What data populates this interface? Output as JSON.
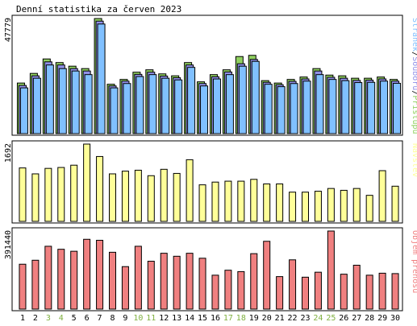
{
  "chart_data": {
    "type": "bar",
    "title": "Denní statistika za červen 2023",
    "days": [
      "1",
      "2",
      "3",
      "4",
      "5",
      "6",
      "7",
      "8",
      "9",
      "10",
      "11",
      "12",
      "13",
      "14",
      "15",
      "16",
      "17",
      "18",
      "19",
      "20",
      "21",
      "22",
      "23",
      "24",
      "25",
      "26",
      "27",
      "28",
      "29",
      "30"
    ],
    "weekend_days": [
      "3",
      "4",
      "10",
      "11",
      "17",
      "18",
      "24",
      "25"
    ],
    "colors": {
      "frame": "#000000",
      "hits": "#90d060",
      "files": "#9090e8",
      "pages": "#80c0ff",
      "visits": "#ffff99",
      "volume": "#f08080",
      "weekday_label": "#000000",
      "weekend_label": "#80b040"
    },
    "panels": [
      {
        "id": "hits-panel",
        "max_label": "47779",
        "ymax": 47779,
        "legend": [
          {
            "text": "Stránek",
            "color": "#80c0ff"
          },
          {
            "text": "/",
            "color": "#000000"
          },
          {
            "text": "Souborů",
            "color": "#9090e8"
          },
          {
            "text": "/",
            "color": "#000000"
          },
          {
            "text": "Přístupů",
            "color": "#90d060"
          }
        ],
        "series": [
          {
            "name": "Přístupů",
            "values": [
              21000,
              25000,
              31000,
              29500,
              28000,
              27000,
              47779,
              20500,
              22500,
              25500,
              26500,
              24800,
              24000,
              29500,
              21500,
              24500,
              26500,
              32000,
              32500,
              22000,
              21000,
              22500,
              23500,
              27000,
              24300,
              24000,
              23000,
              23000,
              23500,
              22500
            ]
          },
          {
            "name": "Souborů",
            "values": [
              20000,
              24000,
              29800,
              28500,
              27000,
              26000,
              46700,
              19800,
              21800,
              24600,
              25500,
              23900,
              23200,
              28500,
              20800,
              23600,
              25600,
              29000,
              30800,
              21300,
              20300,
              21700,
              22700,
              26000,
              23400,
              23000,
              22100,
              22200,
              22700,
              21800
            ]
          },
          {
            "name": "Stránek",
            "values": [
              19000,
              23000,
              28500,
              27000,
              26000,
              24500,
              45500,
              19000,
              20800,
              23700,
              24500,
              23000,
              22300,
              27500,
              19800,
              22700,
              24500,
              28000,
              30000,
              20500,
              19500,
              20800,
              21800,
              24500,
              22500,
              22000,
              21200,
              21300,
              21800,
              20900
            ]
          }
        ]
      },
      {
        "id": "visits-panel",
        "max_label": "1692",
        "ymax": 1692,
        "legend": [
          {
            "text": "Návštěv",
            "color": "#ffff99"
          }
        ],
        "series": [
          {
            "name": "Návštěv",
            "values": [
              1170,
              1040,
              1160,
              1180,
              1230,
              1692,
              1420,
              1040,
              1100,
              1120,
              1000,
              1140,
              1050,
              1350,
              800,
              860,
              880,
              880,
              920,
              820,
              820,
              640,
              640,
              660,
              720,
              680,
              720,
              570,
              1110,
              770
            ]
          }
        ]
      },
      {
        "id": "volume-panel",
        "max_label": "391440",
        "ymax": 391440,
        "legend": [
          {
            "text": "Objem přenosu",
            "color": "#f08080"
          }
        ],
        "series": [
          {
            "name": "Objem přenosu",
            "values": [
              225000,
              245000,
              315000,
              300000,
              290000,
              350000,
              345000,
              285000,
              213000,
              315000,
              240000,
              280000,
              265000,
              280000,
              255000,
              170000,
              195000,
              188000,
              278000,
              340000,
              163000,
              247000,
              160000,
              185000,
              391440,
              175000,
              220000,
              170000,
              180000,
              178000
            ]
          }
        ]
      }
    ]
  }
}
